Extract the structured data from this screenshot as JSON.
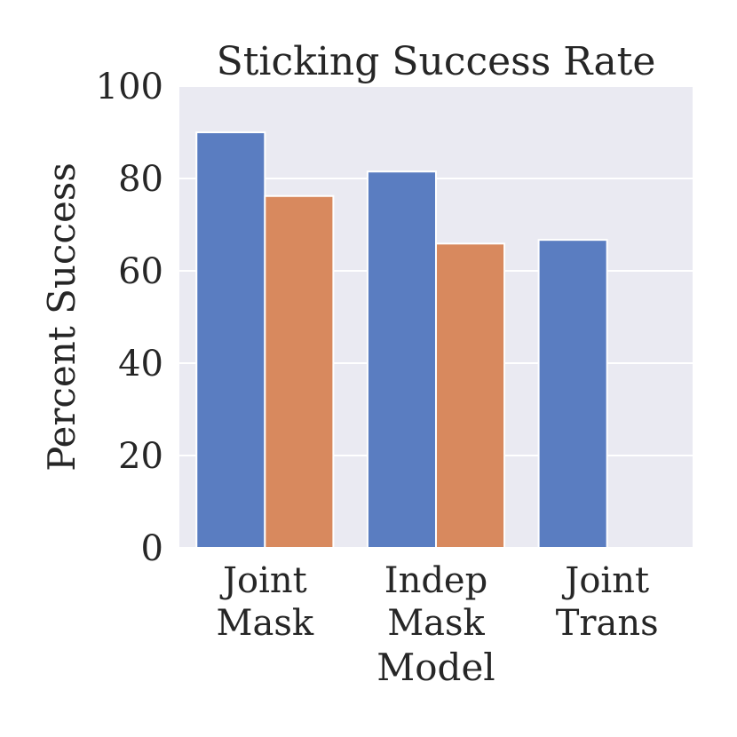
{
  "chart_data": {
    "type": "bar",
    "title": "Sticking Success Rate",
    "xlabel": "Model",
    "ylabel": "Percent Success",
    "ylim": [
      0,
      100
    ],
    "yticks": [
      0,
      20,
      40,
      60,
      80,
      100
    ],
    "grid": true,
    "background": "#eaeaf2",
    "categories": [
      [
        "Joint",
        "Mask"
      ],
      [
        "Indep",
        "Mask"
      ],
      [
        "Joint",
        "Trans"
      ]
    ],
    "series": [
      {
        "color": "#5a7dc1",
        "values": [
          90,
          81.5,
          66.7
        ]
      },
      {
        "color": "#d8895e",
        "values": [
          76.2,
          65.9,
          null
        ]
      }
    ]
  }
}
